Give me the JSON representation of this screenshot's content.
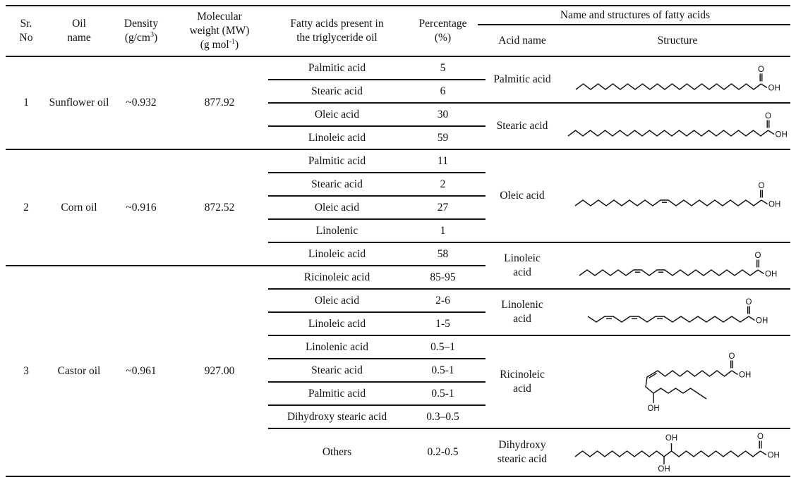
{
  "header": {
    "sr_no": [
      "Sr.",
      "No"
    ],
    "oil_name": [
      "Oil",
      "name"
    ],
    "density": {
      "line1": "Density",
      "unit_pre": "(g/cm",
      "unit_sup": "3",
      "unit_post": ")"
    },
    "mw": {
      "line1": "Molecular",
      "line2": "weight (MW)",
      "unit_pre": "(g mol",
      "unit_sup": "-1",
      "unit_post": ")"
    },
    "fatty": [
      "Fatty acids present in",
      "the triglyceride oil"
    ],
    "percentage": [
      "Percentage",
      "(%)"
    ],
    "right_group": "Name and structures of fatty acids",
    "acid_name": "Acid name",
    "structure": "Structure"
  },
  "oils": [
    {
      "sr": "1",
      "name": "Sunflower oil",
      "density": "~0.932",
      "mw": "877.92",
      "fatty_acids": [
        {
          "acid": "Palmitic acid",
          "pct": "5"
        },
        {
          "acid": "Stearic acid",
          "pct": "6"
        },
        {
          "acid": "Oleic acid",
          "pct": "30"
        },
        {
          "acid": "Linoleic acid",
          "pct": "59"
        }
      ]
    },
    {
      "sr": "2",
      "name": "Corn oil",
      "density": "~0.916",
      "mw": "872.52",
      "fatty_acids": [
        {
          "acid": "Palmitic acid",
          "pct": "11"
        },
        {
          "acid": "Stearic acid",
          "pct": "2"
        },
        {
          "acid": "Oleic acid",
          "pct": "27"
        },
        {
          "acid": "Linolenic",
          "pct": "1"
        },
        {
          "acid": "Linoleic acid",
          "pct": "58"
        }
      ]
    },
    {
      "sr": "3",
      "name": "Castor oil",
      "density": "~0.961",
      "mw": "927.00",
      "fatty_acids": [
        {
          "acid": "Ricinoleic acid",
          "pct": "85-95"
        },
        {
          "acid": "Oleic acid",
          "pct": "2-6"
        },
        {
          "acid": "Linoleic acid",
          "pct": "1-5"
        },
        {
          "acid": "Linolenic acid",
          "pct": "0.5–1"
        },
        {
          "acid": "Stearic acid",
          "pct": "0.5-1"
        },
        {
          "acid": "Palmitic acid",
          "pct": "0.5-1"
        },
        {
          "acid": "Dihydroxy stearic acid",
          "pct": "0.3–0.5"
        },
        {
          "acid": "Others",
          "pct": "0.2-0.5"
        }
      ]
    }
  ],
  "acid_structures": [
    {
      "name_lines": [
        "Palmitic acid"
      ],
      "shape": "palmitic"
    },
    {
      "name_lines": [
        "Stearic acid"
      ],
      "shape": "stearic"
    },
    {
      "name_lines": [
        "Oleic acid"
      ],
      "shape": "oleic"
    },
    {
      "name_lines": [
        "Linoleic",
        "acid"
      ],
      "shape": "linoleic"
    },
    {
      "name_lines": [
        "Linolenic",
        "acid"
      ],
      "shape": "linolenic"
    },
    {
      "name_lines": [
        "Ricinoleic",
        "acid"
      ],
      "shape": "ricinoleic"
    },
    {
      "name_lines": [
        "Dihydroxy",
        "stearic acid"
      ],
      "shape": "dihydroxy_stearic"
    }
  ],
  "atom_labels": {
    "carbonyl_oxygen": "O",
    "hydroxyl": "OH"
  }
}
